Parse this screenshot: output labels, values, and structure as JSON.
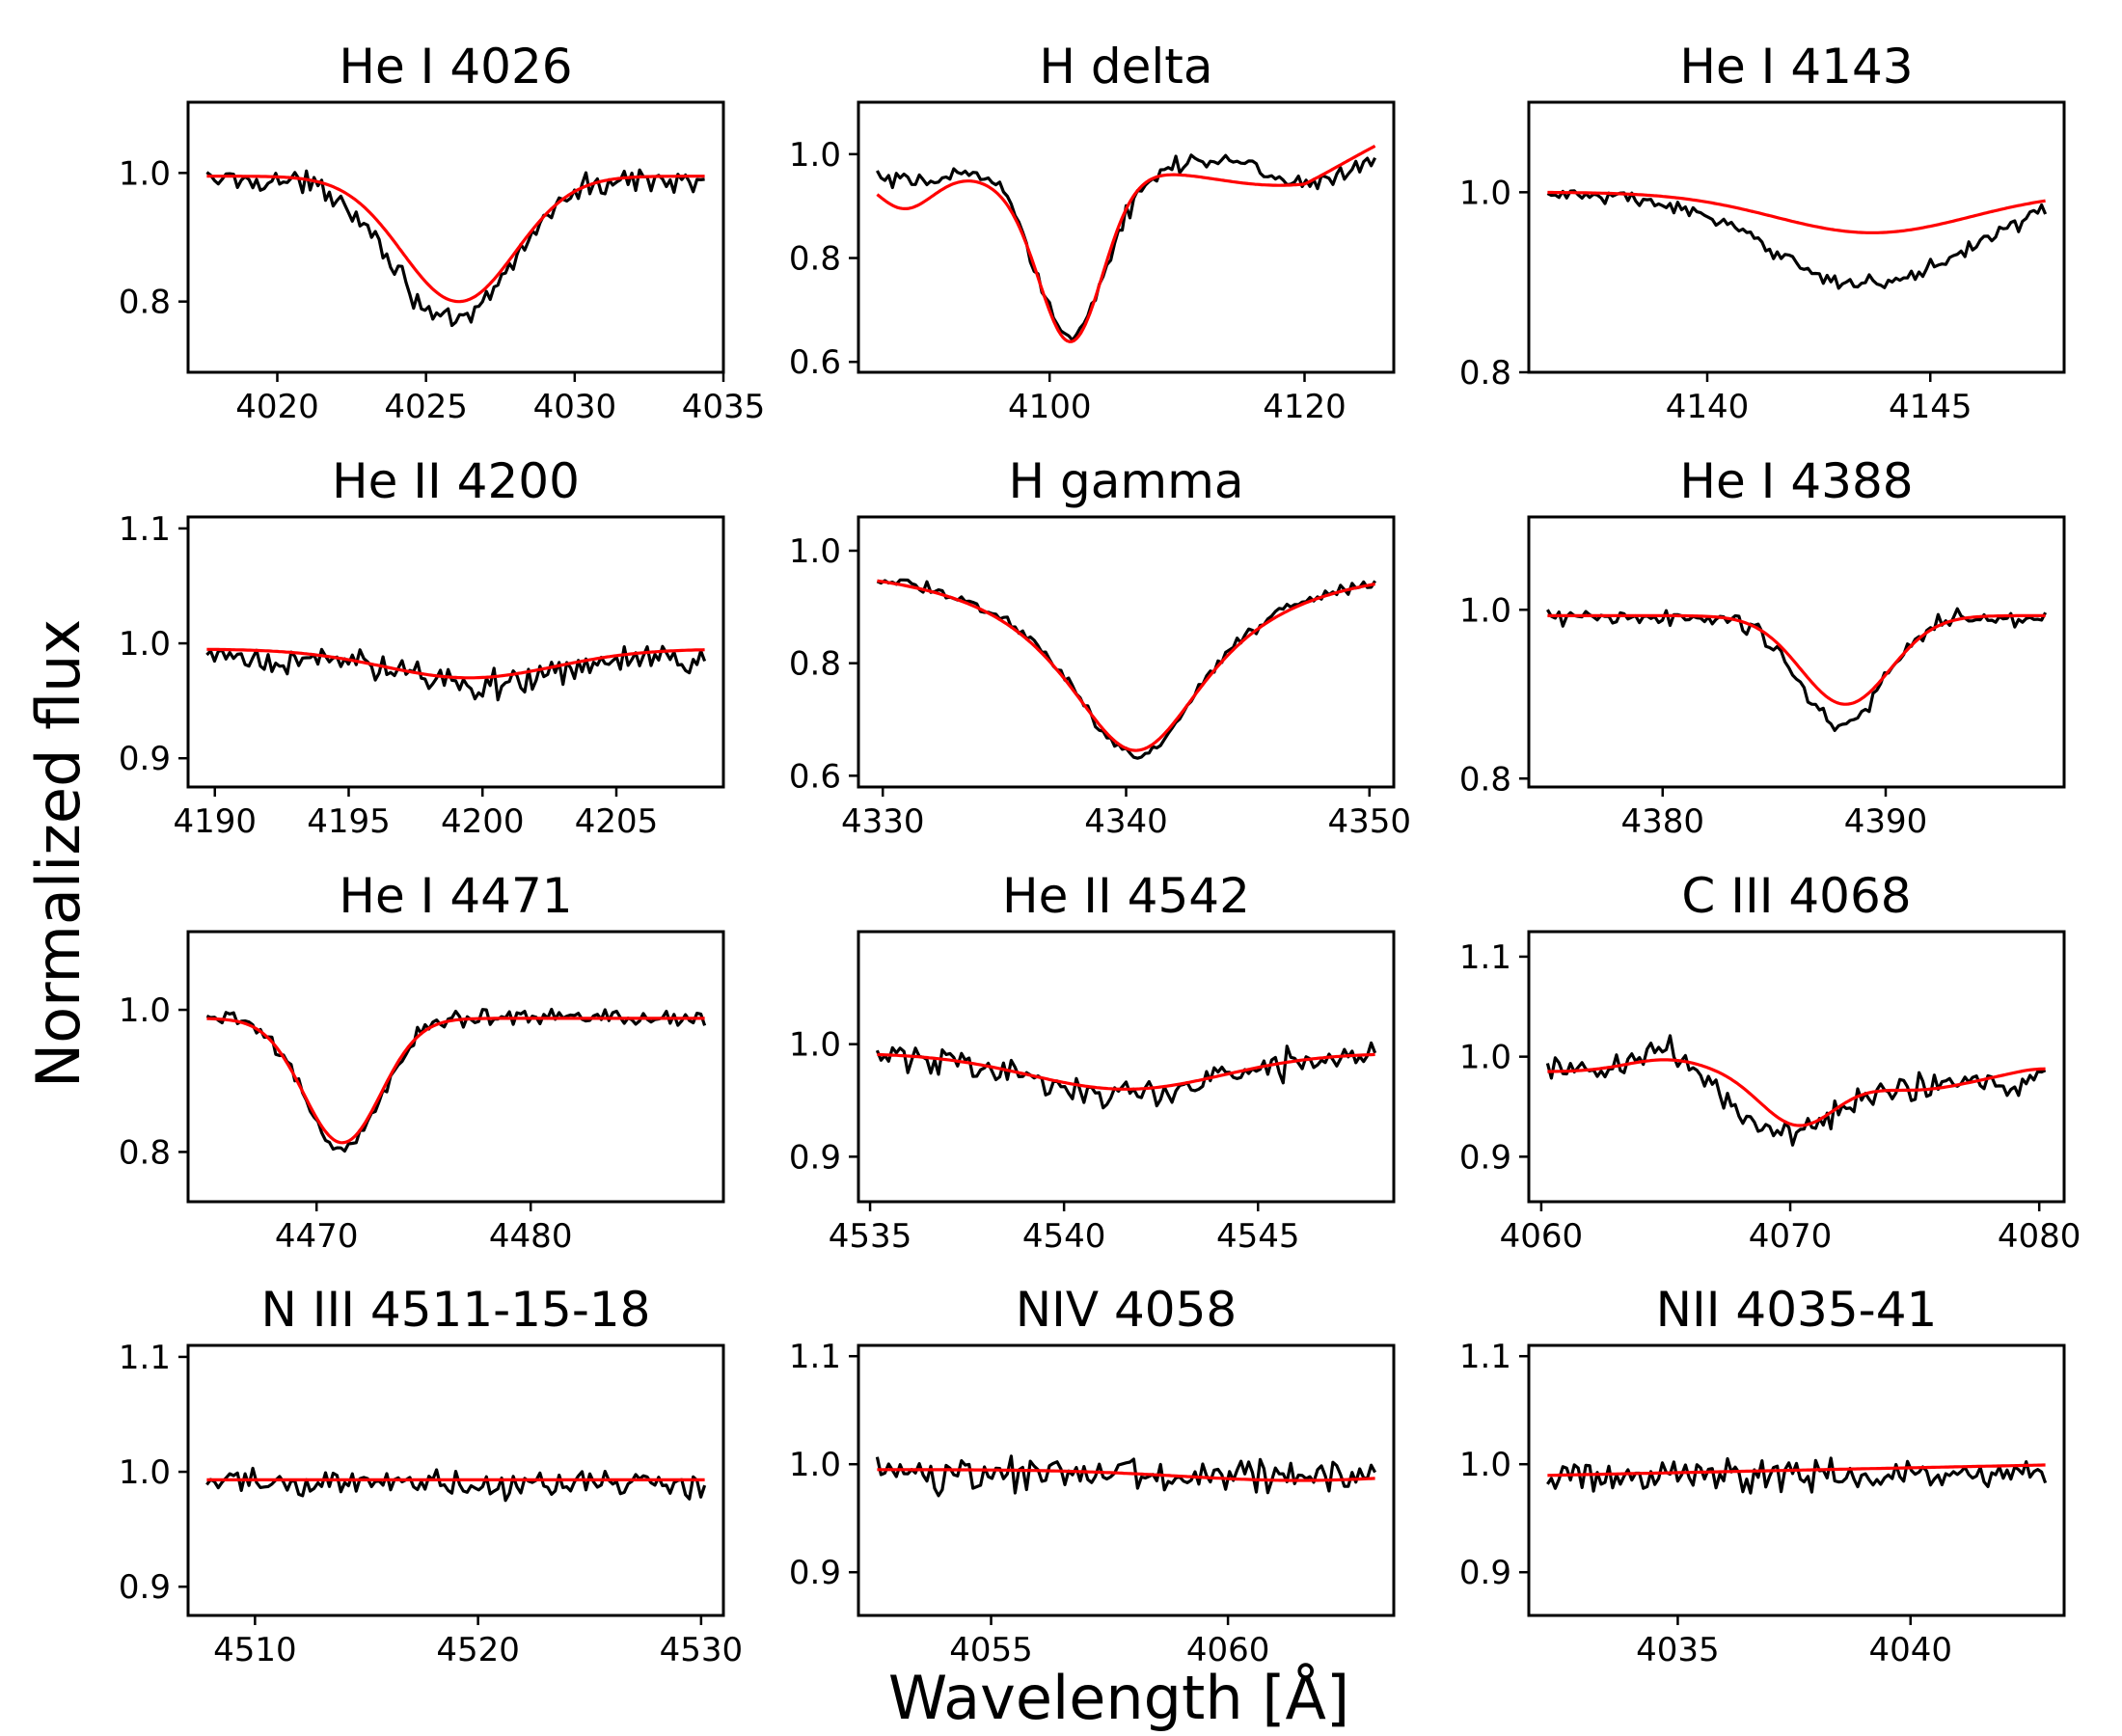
{
  "figure": {
    "xlabel": "Wavelength [Å]",
    "ylabel": "Normalized flux",
    "colors": {
      "observed": "#000000",
      "model": "#ff0000",
      "frame": "#000000"
    }
  },
  "chart_data": [
    {
      "type": "line",
      "title": "He I 4026",
      "xlim": [
        4017,
        4035
      ],
      "ylim": [
        0.69,
        1.11
      ],
      "xticks": [
        4020,
        4025,
        4030,
        4035
      ],
      "yticks": [
        0.8,
        1.0
      ],
      "ytick_labels": [
        "0.8",
        "1.0"
      ],
      "series": [
        {
          "name": "observed",
          "shape": "gauss",
          "center": 4025.9,
          "sigma": 1.9,
          "depth": 0.225,
          "cont": 0.99,
          "slope": 0,
          "noise": 0.011
        },
        {
          "name": "model",
          "shape": "gauss",
          "center": 4026.1,
          "sigma": 1.9,
          "depth": 0.195,
          "cont": 0.995,
          "slope": 0
        }
      ]
    },
    {
      "type": "line",
      "title": "H delta",
      "xlim": [
        4085,
        4127
      ],
      "ylim": [
        0.58,
        1.1
      ],
      "xticks": [
        4100,
        4120
      ],
      "yticks": [
        0.6,
        0.8,
        1.0
      ],
      "ytick_labels": [
        "0.6",
        "0.8",
        "1.0"
      ],
      "series": [
        {
          "name": "observed",
          "shape": "balmer_obs",
          "center": 4101.7,
          "noise": 0.01
        },
        {
          "name": "model",
          "shape": "balmer_fit",
          "center": 4101.7
        }
      ]
    },
    {
      "type": "line",
      "title": "He I 4143",
      "xlim": [
        4136,
        4148
      ],
      "ylim": [
        0.8,
        1.1
      ],
      "xticks": [
        4140,
        4145
      ],
      "yticks": [
        0.8,
        1.0
      ],
      "ytick_labels": [
        "0.8",
        "1.0"
      ],
      "series": [
        {
          "name": "observed",
          "shape": "gauss",
          "center": 4143.6,
          "sigma": 2.2,
          "depth": 0.1,
          "cont": 0.998,
          "slope": 0,
          "noise": 0.005
        },
        {
          "name": "model",
          "shape": "gauss",
          "center": 4143.7,
          "sigma": 2.2,
          "depth": 0.045,
          "cont": 1.0,
          "slope": 0
        }
      ]
    },
    {
      "type": "line",
      "title": "He II 4200",
      "xlim": [
        4189,
        4209
      ],
      "ylim": [
        0.875,
        1.11
      ],
      "xticks": [
        4190,
        4195,
        4200,
        4205
      ],
      "yticks": [
        0.9,
        1.0,
        1.1
      ],
      "ytick_labels": [
        "0.9",
        "1.0",
        "1.1"
      ],
      "series": [
        {
          "name": "observed",
          "shape": "gauss",
          "center": 4200,
          "sigma": 2.2,
          "depth": 0.02,
          "cont": 0.985,
          "slope": 0,
          "noise": 0.008
        },
        {
          "name": "model",
          "shape": "gauss",
          "center": 4199.5,
          "sigma": 3.2,
          "depth": 0.025,
          "cont": 0.995,
          "slope": 0
        }
      ]
    },
    {
      "type": "line",
      "title": "H gamma",
      "xlim": [
        4329,
        4351
      ],
      "ylim": [
        0.58,
        1.06
      ],
      "xticks": [
        4330,
        4340,
        4350
      ],
      "yticks": [
        0.6,
        0.8,
        1.0
      ],
      "ytick_labels": [
        "0.6",
        "0.8",
        "1.0"
      ],
      "series": [
        {
          "name": "observed",
          "shape": "lorentz",
          "center": 4340.4,
          "gamma": 3.6,
          "depth": 0.35,
          "cont": 0.985,
          "slope": 0,
          "noise": 0.006
        },
        {
          "name": "model",
          "shape": "lorentz",
          "center": 4340.4,
          "gamma": 3.8,
          "depth": 0.34,
          "cont": 0.985,
          "slope": 0
        }
      ]
    },
    {
      "type": "line",
      "title": "He I 4388",
      "xlim": [
        4374,
        4398
      ],
      "ylim": [
        0.79,
        1.11
      ],
      "xticks": [
        4380,
        4390
      ],
      "yticks": [
        0.8,
        1.0
      ],
      "ytick_labels": [
        "0.8",
        "1.0"
      ],
      "series": [
        {
          "name": "observed",
          "shape": "gauss",
          "center": 4388,
          "sigma": 1.9,
          "depth": 0.125,
          "cont": 0.99,
          "slope": 0,
          "noise": 0.007
        },
        {
          "name": "model",
          "shape": "gauss",
          "center": 4388.2,
          "sigma": 2.0,
          "depth": 0.105,
          "cont": 0.993,
          "slope": 0
        }
      ]
    },
    {
      "type": "line",
      "title": "He I 4471",
      "xlim": [
        4464,
        4489
      ],
      "ylim": [
        0.73,
        1.11
      ],
      "xticks": [
        4470,
        4480
      ],
      "yticks": [
        0.8,
        1.0
      ],
      "ytick_labels": [
        "0.8",
        "1.0"
      ],
      "series": [
        {
          "name": "observed",
          "shape": "gauss",
          "center": 4471.2,
          "sigma": 1.8,
          "depth": 0.185,
          "cont": 0.99,
          "slope": 0,
          "noise": 0.007
        },
        {
          "name": "model",
          "shape": "gauss",
          "center": 4471.2,
          "sigma": 1.8,
          "depth": 0.175,
          "cont": 0.988,
          "slope": 0
        }
      ]
    },
    {
      "type": "line",
      "title": "He II 4542",
      "xlim": [
        4534.7,
        4548.5
      ],
      "ylim": [
        0.86,
        1.1
      ],
      "xticks": [
        4535,
        4540,
        4545
      ],
      "yticks": [
        0.9,
        1.0
      ],
      "ytick_labels": [
        "0.9",
        "1.0"
      ],
      "series": [
        {
          "name": "observed",
          "shape": "gauss",
          "center": 4541.6,
          "sigma": 2.3,
          "depth": 0.035,
          "cont": 0.99,
          "slope": 0,
          "noise": 0.008
        },
        {
          "name": "model",
          "shape": "gauss",
          "center": 4541.6,
          "sigma": 2.5,
          "depth": 0.032,
          "cont": 0.992,
          "slope": 0
        }
      ]
    },
    {
      "type": "line",
      "title": "C III 4068",
      "xlim": [
        4059.5,
        4081
      ],
      "ylim": [
        0.855,
        1.125
      ],
      "xticks": [
        4060,
        4070,
        4080
      ],
      "yticks": [
        0.9,
        1.0,
        1.1
      ],
      "ytick_labels": [
        "0.9",
        "1.0",
        "1.1"
      ],
      "series": [
        {
          "name": "observed",
          "shape": "ciii_obs",
          "noise": 0.008
        },
        {
          "name": "model",
          "shape": "ciii_fit"
        }
      ]
    },
    {
      "type": "line",
      "title": "N III 4511-15-18",
      "xlim": [
        4507,
        4531
      ],
      "ylim": [
        0.875,
        1.11
      ],
      "xticks": [
        4510,
        4520,
        4530
      ],
      "yticks": [
        0.9,
        1.0,
        1.1
      ],
      "ytick_labels": [
        "0.9",
        "1.0",
        "1.1"
      ],
      "series": [
        {
          "name": "observed",
          "shape": "flat",
          "cont": 0.99,
          "noise": 0.008
        },
        {
          "name": "model",
          "shape": "flat",
          "cont": 0.993
        }
      ]
    },
    {
      "type": "line",
      "title": "NIV 4058",
      "xlim": [
        4052.2,
        4063.5
      ],
      "ylim": [
        0.86,
        1.11
      ],
      "xticks": [
        4055,
        4060
      ],
      "yticks": [
        0.9,
        1.0,
        1.1
      ],
      "ytick_labels": [
        "0.9",
        "1.0",
        "1.1"
      ],
      "series": [
        {
          "name": "observed",
          "shape": "flat",
          "cont": 0.99,
          "noise": 0.009
        },
        {
          "name": "model",
          "shape": "gauss",
          "center": 4061.5,
          "sigma": 2.5,
          "depth": 0.01,
          "cont": 0.995,
          "slope": 0
        }
      ]
    },
    {
      "type": "line",
      "title": "NII 4035-41",
      "xlim": [
        4031.8,
        4043.3
      ],
      "ylim": [
        0.86,
        1.11
      ],
      "xticks": [
        4035,
        4040
      ],
      "yticks": [
        0.9,
        1.0,
        1.1
      ],
      "ytick_labels": [
        "0.9",
        "1.0",
        "1.1"
      ],
      "series": [
        {
          "name": "observed",
          "shape": "flat",
          "cont": 0.99,
          "noise": 0.009
        },
        {
          "name": "model",
          "shape": "flat",
          "cont": 0.994,
          "slope": 0.0009
        }
      ]
    }
  ]
}
